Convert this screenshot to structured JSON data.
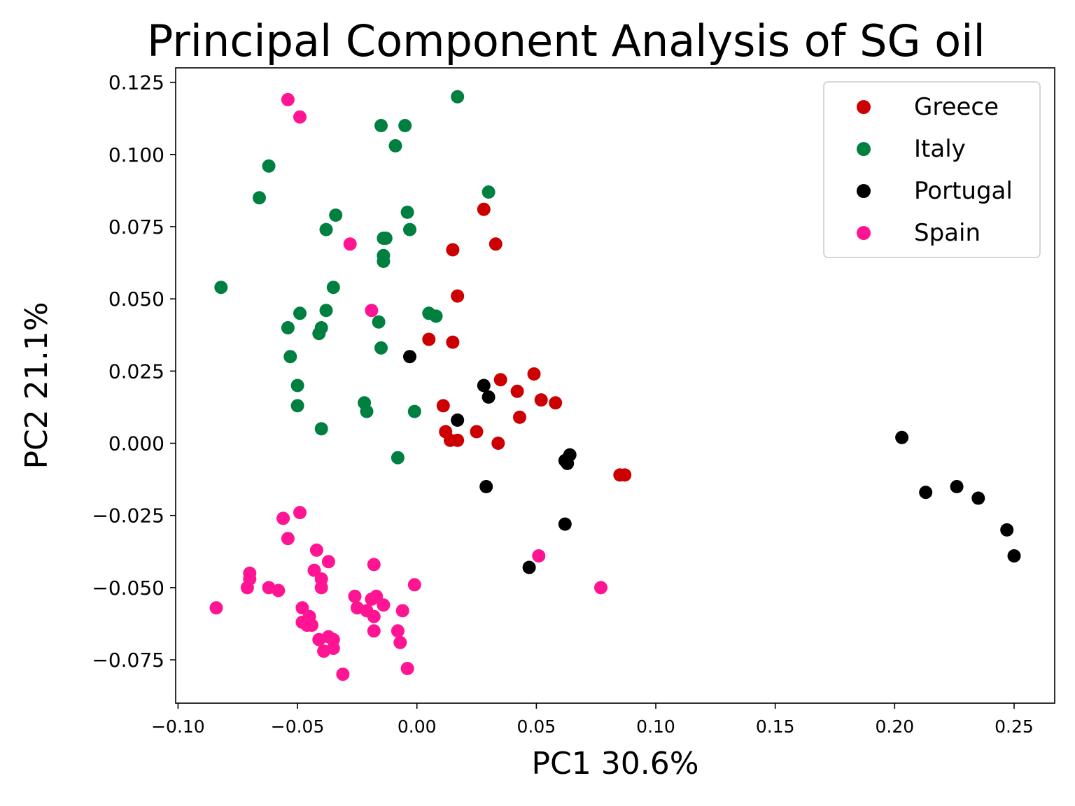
{
  "chart_data": {
    "type": "scatter",
    "title": "Principal Component Analysis of SG oil",
    "xlabel": "PC1 30.6%",
    "ylabel": "PC2 21.1%",
    "xlim": [
      -0.101,
      0.267
    ],
    "ylim": [
      -0.09,
      0.13
    ],
    "xticks": [
      {
        "value": -0.1,
        "label": "−0.10"
      },
      {
        "value": -0.05,
        "label": "−0.05"
      },
      {
        "value": 0.0,
        "label": "0.00"
      },
      {
        "value": 0.05,
        "label": "0.05"
      },
      {
        "value": 0.1,
        "label": "0.10"
      },
      {
        "value": 0.15,
        "label": "0.15"
      },
      {
        "value": 0.2,
        "label": "0.20"
      },
      {
        "value": 0.25,
        "label": "0.25"
      }
    ],
    "yticks": [
      {
        "value": 0.125,
        "label": "0.125"
      },
      {
        "value": 0.1,
        "label": "0.100"
      },
      {
        "value": 0.075,
        "label": "0.075"
      },
      {
        "value": 0.05,
        "label": "0.050"
      },
      {
        "value": 0.025,
        "label": "0.025"
      },
      {
        "value": 0.0,
        "label": "0.000"
      },
      {
        "value": -0.025,
        "label": "−0.025"
      },
      {
        "value": -0.05,
        "label": "−0.050"
      },
      {
        "value": -0.075,
        "label": "−0.075"
      }
    ],
    "grid": false,
    "legend_position": "top-right",
    "series": [
      {
        "name": "Greece",
        "color": "#cc0000",
        "points": [
          [
            0.028,
            0.081
          ],
          [
            0.033,
            0.069
          ],
          [
            0.015,
            0.067
          ],
          [
            0.017,
            0.051
          ],
          [
            0.005,
            0.036
          ],
          [
            0.015,
            0.035
          ],
          [
            0.049,
            0.024
          ],
          [
            0.035,
            0.022
          ],
          [
            0.042,
            0.018
          ],
          [
            0.052,
            0.015
          ],
          [
            0.058,
            0.014
          ],
          [
            0.011,
            0.013
          ],
          [
            0.043,
            0.009
          ],
          [
            0.012,
            0.004
          ],
          [
            0.025,
            0.004
          ],
          [
            0.014,
            0.001
          ],
          [
            0.017,
            0.001
          ],
          [
            0.034,
            0.0
          ],
          [
            0.085,
            -0.011
          ],
          [
            0.087,
            -0.011
          ]
        ]
      },
      {
        "name": "Italy",
        "color": "#008040",
        "points": [
          [
            0.017,
            0.12
          ],
          [
            -0.015,
            0.11
          ],
          [
            -0.005,
            0.11
          ],
          [
            -0.009,
            0.103
          ],
          [
            -0.062,
            0.096
          ],
          [
            0.03,
            0.087
          ],
          [
            -0.066,
            0.085
          ],
          [
            -0.034,
            0.079
          ],
          [
            -0.004,
            0.08
          ],
          [
            -0.038,
            0.074
          ],
          [
            -0.003,
            0.074
          ],
          [
            -0.013,
            0.071
          ],
          [
            -0.014,
            0.071
          ],
          [
            -0.014,
            0.065
          ],
          [
            -0.014,
            0.063
          ],
          [
            -0.082,
            0.054
          ],
          [
            -0.035,
            0.054
          ],
          [
            -0.049,
            0.045
          ],
          [
            -0.038,
            0.046
          ],
          [
            0.005,
            0.045
          ],
          [
            0.008,
            0.044
          ],
          [
            -0.016,
            0.042
          ],
          [
            -0.054,
            0.04
          ],
          [
            -0.04,
            0.04
          ],
          [
            -0.041,
            0.038
          ],
          [
            -0.015,
            0.033
          ],
          [
            -0.053,
            0.03
          ],
          [
            -0.05,
            0.02
          ],
          [
            -0.022,
            0.014
          ],
          [
            -0.05,
            0.013
          ],
          [
            -0.021,
            0.011
          ],
          [
            -0.001,
            0.011
          ],
          [
            -0.04,
            0.005
          ],
          [
            -0.008,
            -0.005
          ]
        ]
      },
      {
        "name": "Portugal",
        "color": "#000000",
        "points": [
          [
            -0.003,
            0.03
          ],
          [
            0.028,
            0.02
          ],
          [
            0.03,
            0.016
          ],
          [
            0.017,
            0.008
          ],
          [
            0.064,
            -0.004
          ],
          [
            0.062,
            -0.006
          ],
          [
            0.063,
            -0.007
          ],
          [
            0.029,
            -0.015
          ],
          [
            0.062,
            -0.028
          ],
          [
            0.047,
            -0.043
          ],
          [
            0.203,
            0.002
          ],
          [
            0.213,
            -0.017
          ],
          [
            0.226,
            -0.015
          ],
          [
            0.235,
            -0.019
          ],
          [
            0.247,
            -0.03
          ],
          [
            0.25,
            -0.039
          ]
        ]
      },
      {
        "name": "Spain",
        "color": "#ff1493",
        "points": [
          [
            -0.054,
            0.119
          ],
          [
            -0.049,
            0.113
          ],
          [
            -0.028,
            0.069
          ],
          [
            -0.019,
            0.046
          ],
          [
            -0.056,
            -0.026
          ],
          [
            -0.049,
            -0.024
          ],
          [
            -0.054,
            -0.033
          ],
          [
            -0.042,
            -0.037
          ],
          [
            -0.037,
            -0.041
          ],
          [
            -0.018,
            -0.042
          ],
          [
            -0.07,
            -0.045
          ],
          [
            -0.043,
            -0.044
          ],
          [
            -0.07,
            -0.047
          ],
          [
            -0.04,
            -0.047
          ],
          [
            -0.071,
            -0.05
          ],
          [
            -0.062,
            -0.05
          ],
          [
            -0.058,
            -0.051
          ],
          [
            -0.04,
            -0.05
          ],
          [
            -0.001,
            -0.049
          ],
          [
            -0.026,
            -0.053
          ],
          [
            -0.017,
            -0.053
          ],
          [
            -0.019,
            -0.054
          ],
          [
            -0.014,
            -0.056
          ],
          [
            -0.025,
            -0.057
          ],
          [
            -0.021,
            -0.058
          ],
          [
            -0.006,
            -0.058
          ],
          [
            -0.048,
            -0.057
          ],
          [
            -0.018,
            -0.06
          ],
          [
            -0.045,
            -0.06
          ],
          [
            -0.048,
            -0.062
          ],
          [
            -0.046,
            -0.063
          ],
          [
            -0.044,
            -0.063
          ],
          [
            -0.008,
            -0.065
          ],
          [
            -0.018,
            -0.065
          ],
          [
            -0.041,
            -0.068
          ],
          [
            -0.037,
            -0.067
          ],
          [
            -0.035,
            -0.068
          ],
          [
            -0.007,
            -0.069
          ],
          [
            -0.039,
            -0.072
          ],
          [
            -0.035,
            -0.071
          ],
          [
            -0.004,
            -0.078
          ],
          [
            -0.031,
            -0.08
          ],
          [
            -0.084,
            -0.057
          ],
          [
            0.051,
            -0.039
          ],
          [
            0.077,
            -0.05
          ]
        ]
      }
    ]
  }
}
